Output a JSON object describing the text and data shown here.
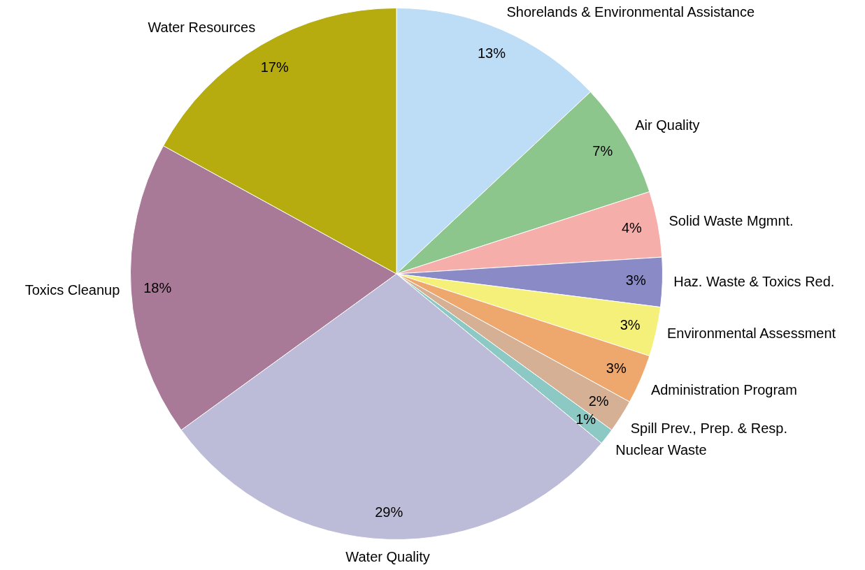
{
  "chart_data": {
    "type": "pie",
    "categories": [
      "Shorelands & Environmental Assistance",
      "Air Quality",
      "Solid Waste Mgmnt.",
      "Haz. Waste & Toxics Red.",
      "Environmental Assessment",
      "Administration Program",
      "Spill Prev., Prep. & Resp.",
      "Nuclear Waste",
      "Water Quality",
      "Toxics Cleanup",
      "Water Resources"
    ],
    "values": [
      13,
      7,
      4,
      3,
      3,
      3,
      2,
      1,
      29,
      18,
      17
    ],
    "value_labels": [
      "13%",
      "7%",
      "4%",
      "3%",
      "3%",
      "3%",
      "2%",
      "1%",
      "29%",
      "18%",
      "17%"
    ],
    "colors": [
      "#bddcf6",
      "#8cc68c",
      "#f6aeaa",
      "#8a8ac6",
      "#f4f07a",
      "#eea86e",
      "#d6b094",
      "#8cc8c4",
      "#bcbcd8",
      "#a87a98",
      "#b6ac10"
    ]
  }
}
